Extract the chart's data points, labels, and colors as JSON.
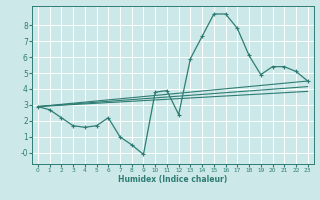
{
  "xlabel": "Humidex (Indice chaleur)",
  "background_color": "#cce8e8",
  "grid_color": "#ffffff",
  "line_color": "#2e7d74",
  "xlim": [
    -0.5,
    23.5
  ],
  "ylim": [
    -0.7,
    9.2
  ],
  "xticks": [
    0,
    1,
    2,
    3,
    4,
    5,
    6,
    7,
    8,
    9,
    10,
    11,
    12,
    13,
    14,
    15,
    16,
    17,
    18,
    19,
    20,
    21,
    22,
    23
  ],
  "yticks": [
    0,
    1,
    2,
    3,
    4,
    5,
    6,
    7,
    8
  ],
  "ytick_labels": [
    "-0",
    "1",
    "2",
    "3",
    "4",
    "5",
    "6",
    "7",
    "8"
  ],
  "main_series": {
    "x": [
      0,
      1,
      2,
      3,
      4,
      5,
      6,
      7,
      8,
      9,
      10,
      11,
      12,
      13,
      14,
      15,
      16,
      17,
      18,
      19,
      20,
      21,
      22,
      23
    ],
    "y": [
      2.9,
      2.7,
      2.2,
      1.7,
      1.6,
      1.7,
      2.2,
      1.0,
      0.5,
      -0.1,
      3.8,
      3.9,
      2.4,
      5.9,
      7.3,
      8.7,
      8.7,
      7.8,
      6.1,
      4.9,
      5.4,
      5.4,
      5.1,
      4.5
    ]
  },
  "trend_lines": [
    {
      "x": [
        0,
        23
      ],
      "y": [
        2.9,
        4.5
      ]
    },
    {
      "x": [
        0,
        23
      ],
      "y": [
        2.9,
        3.85
      ]
    },
    {
      "x": [
        0,
        23
      ],
      "y": [
        2.9,
        4.15
      ]
    }
  ]
}
